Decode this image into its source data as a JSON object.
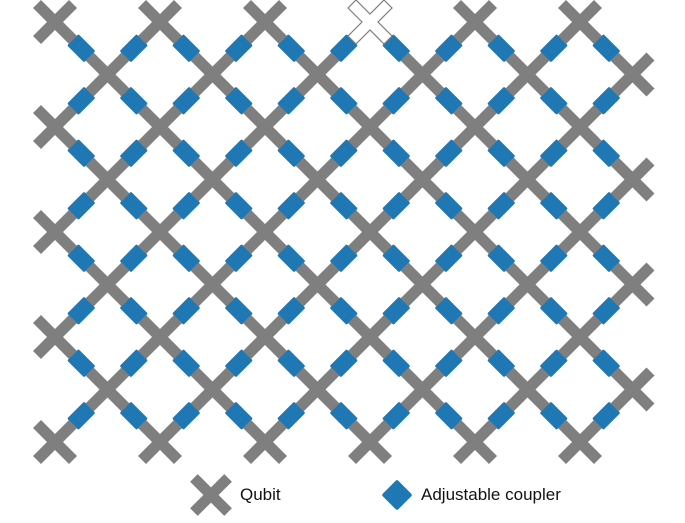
{
  "diagram": {
    "lattice": {
      "rows": 9,
      "cols": 6
    },
    "missing_qubit": {
      "row": 0,
      "col": 3
    },
    "colors": {
      "qubit": "#7f7f7f",
      "coupler": "#1f77b4",
      "coupler_border": "#ffffff",
      "missing_qubit_fill": "#ffffff",
      "missing_qubit_stroke": "#7f7f7f"
    }
  },
  "legend": {
    "qubit_label": "Qubit",
    "coupler_label": "Adjustable coupler",
    "qubit_icon": "x-cross-icon",
    "coupler_icon": "diamond-icon"
  }
}
